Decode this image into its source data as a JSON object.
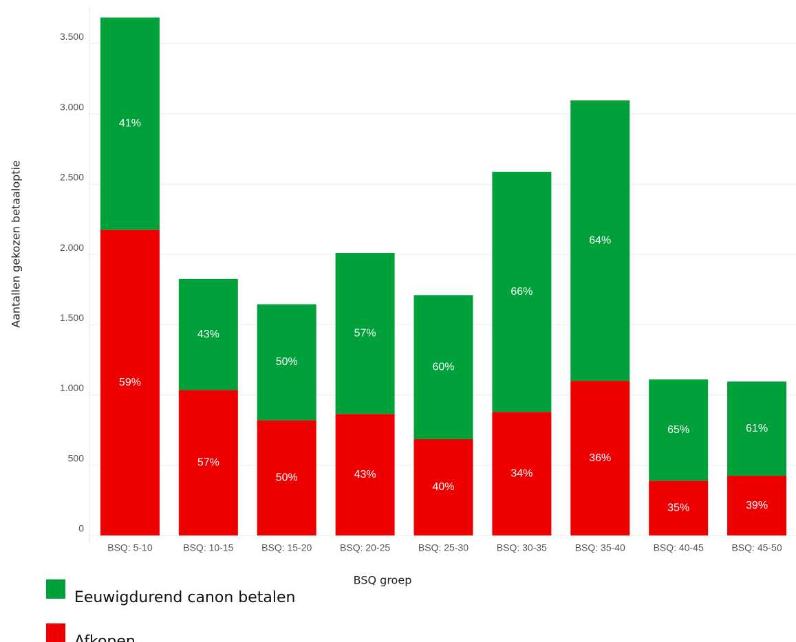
{
  "chart_data": {
    "type": "stacked_bar",
    "x_label": "BSQ groep",
    "y_label": "Aantallen gekozen betaaloptie",
    "categories": [
      "BSQ: 5-10",
      "BSQ: 10-15",
      "BSQ: 15-20",
      "BSQ: 20-25",
      "BSQ: 25-30",
      "BSQ: 30-35",
      "BSQ: 35-40",
      "BSQ: 40-45",
      "BSQ: 45-50"
    ],
    "series": [
      {
        "name": "Eeuwigdurend canon betalen",
        "color": "#00a13a",
        "values": [
          1510,
          790,
          825,
          1146,
          1025,
          1709,
          1995,
          720,
          670
        ],
        "value_labels": [
          "41%",
          "43%",
          "50%",
          "57%",
          "60%",
          "66%",
          "64%",
          "65%",
          "61%"
        ]
      },
      {
        "name": "Afkopen",
        "color": "#ee0000",
        "values": [
          2175,
          1035,
          820,
          864,
          685,
          879,
          1100,
          390,
          425
        ],
        "value_labels": [
          "59%",
          "57%",
          "50%",
          "43%",
          "40%",
          "34%",
          "36%",
          "35%",
          "39%"
        ]
      }
    ],
    "ylim": [
      0,
      3800
    ],
    "yticks": [
      0,
      500,
      {
        "value": 1000,
        "label": "1.000"
      },
      {
        "value": 1500,
        "label": "1.500"
      },
      {
        "value": 2000,
        "label": "2.000"
      },
      {
        "value": 2500,
        "label": "2.500"
      },
      {
        "value": 3000,
        "label": "3.000"
      },
      {
        "value": 3500,
        "label": "3.500"
      }
    ],
    "grid": true
  }
}
